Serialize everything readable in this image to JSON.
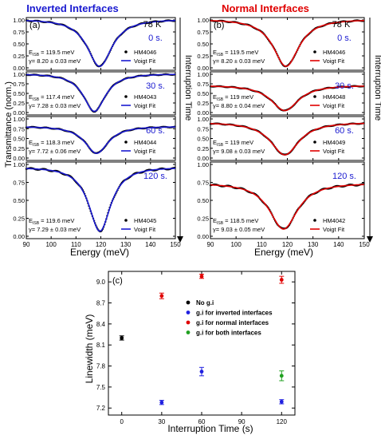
{
  "panels": {
    "a": {
      "label": "(a)",
      "title": "Inverted Interfaces",
      "title_color": "#1a1ad0",
      "fit_color": "#1a1ad0",
      "temperature": "78 K",
      "ylabel": "Transmittance (norm.)",
      "xlabel": "Energy (meV)",
      "x_ticks": [
        "90",
        "100",
        "110",
        "120",
        "130",
        "140",
        "150"
      ],
      "y_ticks": [
        "0.00",
        "0.25",
        "0.50",
        "0.75",
        "1.00"
      ],
      "legend_data": "Voigt Fit",
      "subplots": [
        {
          "time": "0 s.",
          "sample": "HM4046",
          "eisb": "119.5 meV",
          "gamma": "γ= 8.20 ± 0.03 meV",
          "eisb_val": 119.5,
          "gamma_val": 8.2,
          "baseline": 1.0
        },
        {
          "time": "30 s.",
          "sample": "HM4043",
          "eisb": "117.4 meV",
          "gamma": "γ= 7.28 ± 0.03 meV",
          "eisb_val": 117.4,
          "gamma_val": 7.28,
          "baseline": 1.0
        },
        {
          "time": "60 s.",
          "sample": "HM4044",
          "eisb": "118.3 meV",
          "gamma": "γ= 7.72 ± 0.06 meV",
          "eisb_val": 118.3,
          "gamma_val": 7.72,
          "baseline": 0.8
        },
        {
          "time": "120 s.",
          "sample": "HM4045",
          "eisb": "119.6 meV",
          "gamma": "γ= 7.29 ± 0.03 meV",
          "eisb_val": 119.6,
          "gamma_val": 7.29,
          "baseline": 0.95
        }
      ]
    },
    "b": {
      "label": "(b)",
      "title": "Normal Interfaces",
      "title_color": "#e00000",
      "fit_color": "#e00000",
      "temperature": "78 K",
      "xlabel": "Energy (meV)",
      "x_ticks": [
        "90",
        "100",
        "110",
        "120",
        "130",
        "140",
        "150"
      ],
      "y_ticks": [
        "0.00",
        "0.25",
        "0.50",
        "0.75",
        "1.00"
      ],
      "legend_data": "Voigt Fit",
      "side_label": "Interruption Time",
      "subplots": [
        {
          "time": "0 s.",
          "sample": "HM4046",
          "eisb": "119.5 meV",
          "gamma": "γ= 8.20 ± 0.03 meV",
          "eisb_val": 119.5,
          "gamma_val": 8.2,
          "baseline": 1.0
        },
        {
          "time": "30 s.",
          "sample": "HM4048",
          "eisb": "119 meV",
          "gamma": "γ= 8.80 ± 0.04 meV",
          "eisb_val": 119.0,
          "gamma_val": 8.8,
          "baseline": 0.7
        },
        {
          "time": "60 s.",
          "sample": "HM4049",
          "eisb": "119 meV",
          "gamma": "γ= 9.08 ± 0.03 meV",
          "eisb_val": 119.0,
          "gamma_val": 9.08,
          "baseline": 0.9
        },
        {
          "time": "120 s.",
          "sample": "HM4042",
          "eisb": "118.5 meV",
          "gamma": "γ= 9.03 ± 0.05 meV",
          "eisb_val": 118.5,
          "gamma_val": 9.03,
          "baseline": 0.73
        }
      ]
    },
    "c": {
      "label": "(c)",
      "xlabel": "Interruption Time (s)",
      "ylabel": "Linewidth (meV)",
      "x_ticks": [
        "0",
        "30",
        "60",
        "90",
        "120"
      ],
      "y_ticks": [
        "7.2",
        "7.5",
        "7.8",
        "8.1",
        "8.4",
        "8.7",
        "9.0"
      ]
    }
  },
  "side_label_a": "Interruption Time",
  "eisb_prefix": "E",
  "eisb_sub": "ISB",
  "chart_data": [
    {
      "type": "line",
      "panel": "a",
      "title": "Inverted Interfaces",
      "xlabel": "Energy (meV)",
      "ylabel": "Transmittance (norm.)",
      "xlim": [
        90,
        150
      ],
      "ylim": [
        0,
        1
      ],
      "series": [
        {
          "name": "HM4046",
          "center": 119.5,
          "gamma": 8.2,
          "min": 0.03,
          "baseline": 1.0
        },
        {
          "name": "HM4043",
          "center": 117.4,
          "gamma": 7.28,
          "min": 0.03,
          "baseline": 1.0
        },
        {
          "name": "HM4044",
          "center": 118.3,
          "gamma": 7.72,
          "min": 0.12,
          "baseline": 0.8
        },
        {
          "name": "HM4045",
          "center": 119.6,
          "gamma": 7.29,
          "min": 0.07,
          "baseline": 0.95
        }
      ]
    },
    {
      "type": "line",
      "panel": "b",
      "title": "Normal Interfaces",
      "xlabel": "Energy (meV)",
      "xlim": [
        90,
        150
      ],
      "ylim": [
        0,
        1
      ],
      "series": [
        {
          "name": "HM4046",
          "center": 119.5,
          "gamma": 8.2,
          "min": 0.03,
          "baseline": 1.0
        },
        {
          "name": "HM4048",
          "center": 119.0,
          "gamma": 8.8,
          "min": 0.05,
          "baseline": 0.7
        },
        {
          "name": "HM4049",
          "center": 119.0,
          "gamma": 9.08,
          "min": 0.08,
          "baseline": 0.9
        },
        {
          "name": "HM4042",
          "center": 118.5,
          "gamma": 9.03,
          "min": 0.1,
          "baseline": 0.73
        }
      ]
    },
    {
      "type": "scatter",
      "panel": "c",
      "xlabel": "Interruption Time (s)",
      "ylabel": "Linewidth (meV)",
      "xlim": [
        -10,
        130
      ],
      "ylim": [
        7.1,
        9.15
      ],
      "legend_position": "top-center",
      "series": [
        {
          "name": "No g.i",
          "color": "#000000",
          "points": [
            {
              "x": 0,
              "y": 8.2,
              "err": 0.03
            }
          ]
        },
        {
          "name": "g.i for inverted interfaces",
          "color": "#2020e0",
          "points": [
            {
              "x": 30,
              "y": 7.28,
              "err": 0.03
            },
            {
              "x": 60,
              "y": 7.72,
              "err": 0.06
            },
            {
              "x": 120,
              "y": 7.29,
              "err": 0.03
            }
          ]
        },
        {
          "name": "g.i for normal interfaces",
          "color": "#e00000",
          "points": [
            {
              "x": 30,
              "y": 8.8,
              "err": 0.04
            },
            {
              "x": 60,
              "y": 9.08,
              "err": 0.03
            },
            {
              "x": 120,
              "y": 9.03,
              "err": 0.05
            }
          ]
        },
        {
          "name": "g.i for both interfaces",
          "color": "#20a020",
          "points": [
            {
              "x": 120,
              "y": 7.66,
              "err": 0.07
            }
          ]
        }
      ]
    }
  ]
}
